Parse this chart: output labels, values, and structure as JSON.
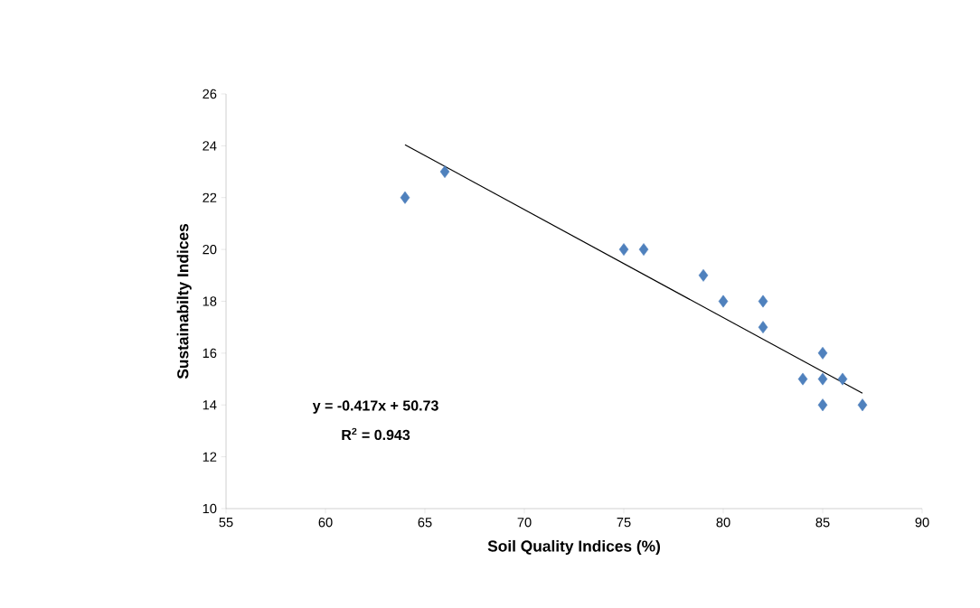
{
  "chart_data": {
    "type": "scatter",
    "xlabel": "Soil Quality Indices (%)",
    "ylabel": "Sustainabilty Indices",
    "xlim": [
      55,
      90
    ],
    "ylim": [
      10,
      26
    ],
    "xticks": [
      55,
      60,
      65,
      70,
      75,
      80,
      85,
      90
    ],
    "yticks": [
      10,
      12,
      14,
      16,
      18,
      20,
      22,
      24,
      26
    ],
    "grid": false,
    "series": [
      {
        "color": "#4f81bd",
        "marker": "diamond",
        "x": [
          64,
          66,
          75,
          76,
          79,
          80,
          82,
          82,
          85,
          84,
          85,
          86,
          85,
          87
        ],
        "values": [
          22,
          23,
          20,
          20,
          19,
          18,
          18,
          17,
          16,
          15,
          15,
          15,
          14,
          14
        ]
      },
      {
        "type": "line",
        "color": "#000000",
        "marker": "none",
        "line_style": "solid",
        "x": [
          64,
          87
        ],
        "values": [
          24.04,
          14.45
        ]
      }
    ],
    "annotations": [
      "y = -0.417x + 50.73",
      "R$^{2}$ = 0.943"
    ]
  }
}
